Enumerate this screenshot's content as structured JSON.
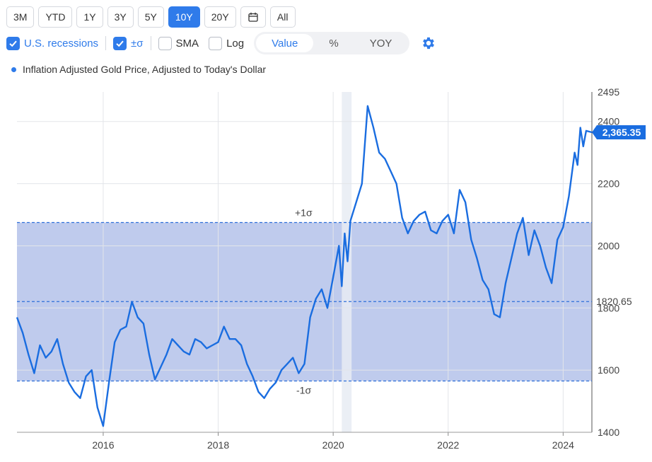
{
  "toolbar": {
    "ranges": [
      "3M",
      "YTD",
      "1Y",
      "3Y",
      "5Y",
      "10Y",
      "20Y",
      "All"
    ],
    "active_range": "10Y"
  },
  "options": {
    "recessions_label": "U.S. recessions",
    "sigma_label": "±σ",
    "sma_label": "SMA",
    "log_label": "Log",
    "modes": [
      "Value",
      "%",
      "YOY"
    ],
    "active_mode": "Value"
  },
  "legend": {
    "series_label": "Inflation Adjusted Gold Price, Adjusted to Today's Dollar"
  },
  "colors": {
    "line": "#1a6de0",
    "band": "#bcc8ec",
    "recession": "#e7ecf3",
    "accent": "#2f7bea"
  },
  "chart_data": {
    "type": "line",
    "title": "",
    "xlabel": "",
    "ylabel": "",
    "series": [
      {
        "name": "Inflation Adjusted Gold Price, Adjusted to Today's Dollar",
        "x": [
          2014.5,
          2014.6,
          2014.7,
          2014.8,
          2014.9,
          2015.0,
          2015.1,
          2015.2,
          2015.3,
          2015.4,
          2015.5,
          2015.6,
          2015.7,
          2015.8,
          2015.9,
          2016.0,
          2016.1,
          2016.2,
          2016.3,
          2016.4,
          2016.5,
          2016.6,
          2016.7,
          2016.8,
          2016.9,
          2017.0,
          2017.1,
          2017.2,
          2017.3,
          2017.4,
          2017.5,
          2017.6,
          2017.7,
          2017.8,
          2017.9,
          2018.0,
          2018.1,
          2018.2,
          2018.3,
          2018.4,
          2018.5,
          2018.6,
          2018.7,
          2018.8,
          2018.9,
          2019.0,
          2019.1,
          2019.2,
          2019.3,
          2019.4,
          2019.5,
          2019.6,
          2019.7,
          2019.8,
          2019.9,
          2020.0,
          2020.1,
          2020.15,
          2020.2,
          2020.25,
          2020.3,
          2020.4,
          2020.5,
          2020.6,
          2020.7,
          2020.8,
          2020.9,
          2021.0,
          2021.1,
          2021.2,
          2021.3,
          2021.4,
          2021.5,
          2021.6,
          2021.7,
          2021.8,
          2021.9,
          2022.0,
          2022.1,
          2022.2,
          2022.3,
          2022.4,
          2022.5,
          2022.6,
          2022.7,
          2022.8,
          2022.9,
          2023.0,
          2023.1,
          2023.2,
          2023.3,
          2023.4,
          2023.5,
          2023.6,
          2023.7,
          2023.8,
          2023.9,
          2024.0,
          2024.1,
          2024.2,
          2024.25,
          2024.3,
          2024.35,
          2024.4,
          2024.5
        ],
        "values": [
          1770,
          1720,
          1650,
          1590,
          1680,
          1640,
          1660,
          1700,
          1620,
          1560,
          1530,
          1510,
          1580,
          1600,
          1480,
          1420,
          1560,
          1690,
          1730,
          1740,
          1820,
          1770,
          1750,
          1650,
          1570,
          1610,
          1650,
          1700,
          1680,
          1660,
          1650,
          1700,
          1690,
          1670,
          1680,
          1690,
          1740,
          1700,
          1700,
          1680,
          1620,
          1580,
          1530,
          1510,
          1540,
          1560,
          1600,
          1620,
          1640,
          1590,
          1620,
          1770,
          1830,
          1860,
          1800,
          1900,
          2000,
          1870,
          2040,
          1950,
          2080,
          2140,
          2200,
          2450,
          2380,
          2300,
          2280,
          2240,
          2200,
          2090,
          2040,
          2080,
          2100,
          2110,
          2050,
          2040,
          2080,
          2100,
          2040,
          2180,
          2140,
          2020,
          1960,
          1890,
          1860,
          1780,
          1770,
          1880,
          1960,
          2040,
          2090,
          1970,
          2050,
          2000,
          1930,
          1880,
          2020,
          2060,
          2160,
          2300,
          2260,
          2380,
          2320,
          2370,
          2365.35
        ]
      }
    ],
    "x_ticks": [
      "2016",
      "2018",
      "2020",
      "2022",
      "2024"
    ],
    "xlim": [
      2014.5,
      2024.5
    ],
    "y_ticks": [
      "1400",
      "1600",
      "1800",
      "2000",
      "2200",
      "2400",
      "2495"
    ],
    "ylim": [
      1400,
      2495
    ],
    "last_value_label": "2,365.35",
    "last_value": 2365.35,
    "mean_label": "1820.65",
    "mean": 1820.65,
    "plus_sigma_label": "+1σ",
    "plus_sigma": 2075,
    "minus_sigma_label": "-1σ",
    "minus_sigma": 1565,
    "recession": {
      "start": 2020.15,
      "end": 2020.32
    },
    "grid": true,
    "legend_position": "top-left"
  }
}
